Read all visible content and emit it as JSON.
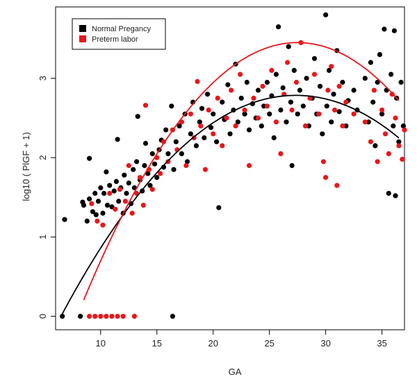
{
  "chart_data": {
    "type": "scatter",
    "title": "",
    "xlabel": "GA",
    "ylabel": "log10 ( PlGF  + 1)",
    "xlim": [
      6.0,
      37.0
    ],
    "ylim": [
      -0.17,
      3.9
    ],
    "x_ticks": [
      10,
      15,
      20,
      25,
      30,
      35
    ],
    "y_ticks": [
      0,
      1,
      2,
      3
    ],
    "grid": false,
    "legend_position": "top-left",
    "series": [
      {
        "name": "Normal Pregancy",
        "color": "#000000",
        "marker": "filled-circle",
        "points": [
          [
            6.6,
            0.0
          ],
          [
            6.8,
            1.22
          ],
          [
            8.2,
            0.0
          ],
          [
            8.4,
            1.44
          ],
          [
            8.5,
            1.4
          ],
          [
            8.8,
            1.2
          ],
          [
            9.0,
            1.48
          ],
          [
            9.0,
            1.99
          ],
          [
            9.3,
            1.32
          ],
          [
            9.5,
            1.55
          ],
          [
            9.6,
            1.28
          ],
          [
            9.8,
            1.45
          ],
          [
            10.0,
            1.62
          ],
          [
            10.2,
            1.3
          ],
          [
            10.3,
            1.55
          ],
          [
            10.5,
            1.82
          ],
          [
            10.6,
            1.4
          ],
          [
            10.8,
            1.65
          ],
          [
            11.0,
            1.38
          ],
          [
            11.2,
            1.58
          ],
          [
            11.4,
            1.7
          ],
          [
            11.5,
            2.23
          ],
          [
            11.6,
            1.45
          ],
          [
            11.8,
            1.62
          ],
          [
            12.0,
            1.3
          ],
          [
            12.1,
            1.78
          ],
          [
            12.3,
            1.55
          ],
          [
            12.5,
            1.68
          ],
          [
            12.7,
            1.42
          ],
          [
            12.9,
            1.85
          ],
          [
            13.0,
            1.62
          ],
          [
            13.2,
            1.95
          ],
          [
            13.3,
            2.52
          ],
          [
            13.5,
            1.72
          ],
          [
            13.7,
            1.58
          ],
          [
            13.9,
            1.9
          ],
          [
            14.0,
            2.18
          ],
          [
            14.2,
            1.8
          ],
          [
            14.4,
            1.65
          ],
          [
            14.6,
            2.05
          ],
          [
            14.8,
            1.92
          ],
          [
            15.0,
            1.75
          ],
          [
            15.2,
            2.1
          ],
          [
            15.4,
            2.22
          ],
          [
            15.6,
            1.88
          ],
          [
            15.8,
            2.35
          ],
          [
            16.0,
            2.05
          ],
          [
            16.3,
            2.65
          ],
          [
            16.4,
            0.0
          ],
          [
            16.5,
            1.85
          ],
          [
            16.7,
            2.2
          ],
          [
            17.0,
            2.4
          ],
          [
            17.2,
            2.05
          ],
          [
            17.5,
            2.55
          ],
          [
            17.7,
            1.95
          ],
          [
            18.0,
            2.3
          ],
          [
            18.2,
            2.7
          ],
          [
            18.5,
            2.15
          ],
          [
            18.8,
            2.45
          ],
          [
            19.0,
            2.62
          ],
          [
            19.2,
            2.25
          ],
          [
            19.5,
            2.8
          ],
          [
            19.8,
            2.38
          ],
          [
            20.0,
            2.55
          ],
          [
            20.3,
            2.2
          ],
          [
            20.5,
            1.37
          ],
          [
            20.8,
            2.7
          ],
          [
            21.0,
            2.48
          ],
          [
            21.3,
            2.92
          ],
          [
            21.5,
            2.3
          ],
          [
            21.8,
            2.6
          ],
          [
            22.0,
            3.18
          ],
          [
            22.2,
            2.45
          ],
          [
            22.5,
            2.75
          ],
          [
            22.8,
            2.55
          ],
          [
            23.0,
            2.95
          ],
          [
            23.2,
            2.35
          ],
          [
            23.5,
            2.68
          ],
          [
            23.8,
            2.5
          ],
          [
            24.0,
            2.85
          ],
          [
            24.3,
            2.4
          ],
          [
            24.5,
            2.65
          ],
          [
            24.8,
            2.95
          ],
          [
            25.0,
            2.55
          ],
          [
            25.2,
            2.78
          ],
          [
            25.4,
            2.25
          ],
          [
            25.6,
            3.05
          ],
          [
            25.8,
            3.65
          ],
          [
            26.0,
            2.6
          ],
          [
            26.2,
            2.88
          ],
          [
            26.5,
            2.45
          ],
          [
            26.7,
            3.4
          ],
          [
            26.9,
            2.7
          ],
          [
            27.0,
            1.9
          ],
          [
            27.2,
            3.1
          ],
          [
            27.5,
            2.55
          ],
          [
            27.7,
            2.85
          ],
          [
            28.0,
            2.65
          ],
          [
            28.3,
            3.0
          ],
          [
            28.5,
            2.4
          ],
          [
            28.8,
            2.75
          ],
          [
            29.0,
            3.25
          ],
          [
            29.2,
            2.55
          ],
          [
            29.5,
            2.9
          ],
          [
            29.7,
            2.3
          ],
          [
            30.0,
            3.8
          ],
          [
            30.1,
            2.65
          ],
          [
            30.3,
            3.1
          ],
          [
            30.5,
            2.45
          ],
          [
            30.7,
            2.8
          ],
          [
            31.0,
            3.35
          ],
          [
            31.2,
            2.58
          ],
          [
            31.5,
            2.95
          ],
          [
            31.8,
            2.4
          ],
          [
            32.0,
            2.72
          ],
          [
            32.5,
            2.85
          ],
          [
            32.8,
            2.6
          ],
          [
            33.5,
            3.0
          ],
          [
            33.8,
            2.45
          ],
          [
            34.0,
            3.2
          ],
          [
            34.2,
            2.7
          ],
          [
            34.4,
            2.15
          ],
          [
            34.6,
            2.95
          ],
          [
            34.8,
            3.3
          ],
          [
            35.0,
            2.55
          ],
          [
            35.2,
            3.62
          ],
          [
            35.4,
            2.85
          ],
          [
            35.6,
            1.55
          ],
          [
            35.8,
            3.05
          ],
          [
            36.0,
            2.4
          ],
          [
            36.1,
            3.6
          ],
          [
            36.2,
            1.52
          ],
          [
            36.3,
            2.75
          ],
          [
            36.5,
            2.2
          ],
          [
            36.7,
            2.95
          ],
          [
            36.9,
            2.4
          ]
        ]
      },
      {
        "name": "Preterm labor",
        "color": "#e8171b",
        "marker": "filled-circle",
        "points": [
          [
            9.0,
            0.0
          ],
          [
            9.2,
            1.42
          ],
          [
            9.5,
            0.0
          ],
          [
            9.7,
            1.2
          ],
          [
            10.0,
            0.0
          ],
          [
            10.2,
            1.15
          ],
          [
            10.5,
            0.0
          ],
          [
            10.8,
            1.55
          ],
          [
            11.0,
            0.0
          ],
          [
            11.3,
            1.35
          ],
          [
            11.5,
            0.0
          ],
          [
            11.7,
            1.6
          ],
          [
            12.0,
            0.0
          ],
          [
            12.2,
            1.45
          ],
          [
            12.5,
            1.9
          ],
          [
            12.8,
            1.3
          ],
          [
            13.0,
            0.0
          ],
          [
            13.2,
            1.55
          ],
          [
            13.5,
            1.75
          ],
          [
            13.8,
            1.4
          ],
          [
            14.0,
            2.66
          ],
          [
            14.3,
            1.85
          ],
          [
            14.6,
            1.6
          ],
          [
            15.0,
            2.0
          ],
          [
            15.3,
            1.8
          ],
          [
            15.6,
            2.2
          ],
          [
            16.0,
            1.95
          ],
          [
            16.4,
            2.35
          ],
          [
            16.8,
            2.1
          ],
          [
            17.2,
            2.45
          ],
          [
            17.6,
            1.9
          ],
          [
            18.0,
            2.55
          ],
          [
            18.3,
            2.25
          ],
          [
            18.6,
            2.96
          ],
          [
            18.9,
            2.4
          ],
          [
            19.3,
            1.85
          ],
          [
            19.6,
            2.6
          ],
          [
            20.0,
            2.3
          ],
          [
            20.4,
            2.75
          ],
          [
            20.8,
            2.15
          ],
          [
            21.2,
            2.5
          ],
          [
            21.6,
            2.85
          ],
          [
            22.0,
            2.4
          ],
          [
            22.4,
            3.05
          ],
          [
            22.8,
            2.6
          ],
          [
            23.2,
            1.9
          ],
          [
            23.6,
            2.75
          ],
          [
            24.0,
            2.5
          ],
          [
            24.4,
            2.9
          ],
          [
            24.8,
            2.65
          ],
          [
            25.2,
            3.1
          ],
          [
            25.6,
            2.45
          ],
          [
            26.0,
            2.05
          ],
          [
            26.3,
            2.8
          ],
          [
            26.6,
            3.2
          ],
          [
            27.0,
            2.6
          ],
          [
            27.4,
            2.95
          ],
          [
            27.8,
            3.45
          ],
          [
            28.2,
            2.4
          ],
          [
            28.6,
            2.75
          ],
          [
            29.0,
            3.05
          ],
          [
            29.4,
            2.55
          ],
          [
            29.8,
            1.95
          ],
          [
            30.0,
            1.75
          ],
          [
            30.2,
            2.85
          ],
          [
            30.5,
            3.15
          ],
          [
            30.8,
            2.6
          ],
          [
            31.0,
            1.65
          ],
          [
            31.2,
            2.9
          ],
          [
            31.5,
            2.4
          ],
          [
            31.8,
            2.7
          ],
          [
            32.5,
            2.55
          ],
          [
            33.5,
            2.45
          ],
          [
            34.0,
            2.2
          ],
          [
            34.3,
            2.85
          ],
          [
            34.6,
            1.95
          ],
          [
            35.0,
            2.6
          ],
          [
            35.3,
            2.3
          ],
          [
            35.6,
            2.05
          ],
          [
            35.9,
            2.8
          ],
          [
            36.2,
            2.5
          ],
          [
            36.5,
            2.15
          ],
          [
            36.8,
            1.98
          ],
          [
            37.0,
            2.35
          ]
        ]
      }
    ],
    "fit_lines": [
      {
        "name": "Normal Pregancy",
        "color": "#000000",
        "type": "quadratic",
        "x_range": [
          6.5,
          36.5
        ],
        "coefficients": [
          -2.0,
          0.35,
          -0.0064
        ]
      },
      {
        "name": "Preterm labor",
        "color": "#e8171b",
        "type": "quadratic",
        "x_range": [
          8.5,
          36.5
        ],
        "coefficients": [
          -3.35,
          0.4948,
          -0.009
        ]
      }
    ]
  }
}
